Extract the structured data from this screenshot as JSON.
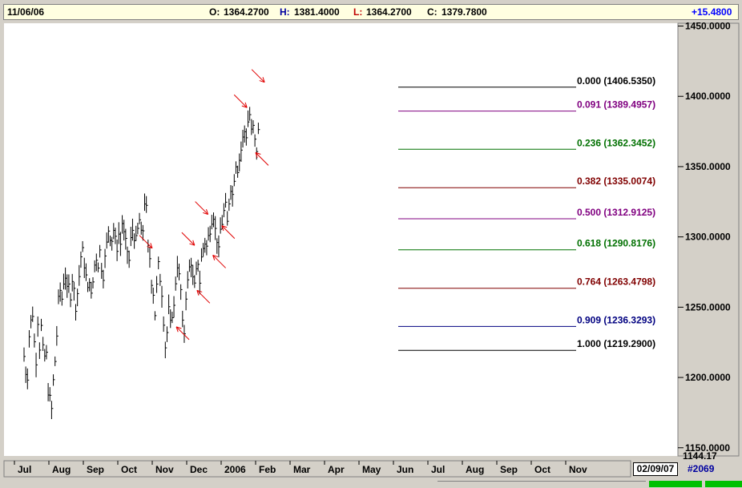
{
  "header": {
    "date": "11/06/06",
    "open_label": "O:",
    "open": "1364.2700",
    "high_label": "H:",
    "high": "1381.4000",
    "low_label": "L:",
    "low": "1364.2700",
    "close_label": "C:",
    "close": "1379.7800",
    "change": "+15.4800"
  },
  "footer": {
    "date": "02/09/07",
    "bar_count": "#2069"
  },
  "colors": {
    "price": "#000000",
    "arrows": "#e00000",
    "plot_bg": "#ffffff",
    "panel_bg": "#d4d0c8"
  },
  "chart_data": {
    "type": "ohlc",
    "y_axis": {
      "range": [
        1144.17,
        1452
      ],
      "ticks": [
        "1450.0000",
        "1400.0000",
        "1350.0000",
        "1300.0000",
        "1250.0000",
        "1200.0000",
        "1150.0000"
      ],
      "tick_values": [
        1450,
        1400,
        1350,
        1300,
        1250,
        1200,
        1150
      ],
      "bottom_label": "1144.17",
      "position": "right"
    },
    "x_axis": {
      "labels": [
        "Jul",
        "Aug",
        "Sep",
        "Oct",
        "Nov",
        "Dec",
        "2006",
        "Feb",
        "Mar",
        "Apr",
        "May",
        "Jun",
        "Jul",
        "Aug",
        "Sep",
        "Oct",
        "Nov"
      ]
    },
    "grid": false,
    "series_path": [
      [
        0,
        1215
      ],
      [
        0.03,
        1195
      ],
      [
        0.06,
        1208
      ],
      [
        0.09,
        1190
      ],
      [
        0.12,
        1222
      ],
      [
        0.16,
        1232
      ],
      [
        0.2,
        1240
      ],
      [
        0.22,
        1232
      ],
      [
        0.25,
        1245
      ],
      [
        0.28,
        1232
      ],
      [
        0.32,
        1218
      ],
      [
        0.34,
        1205
      ],
      [
        0.37,
        1225
      ],
      [
        0.4,
        1240
      ],
      [
        0.43,
        1228
      ],
      [
        0.46,
        1218
      ],
      [
        0.5,
        1236
      ],
      [
        0.54,
        1228
      ],
      [
        0.57,
        1205
      ],
      [
        0.6,
        1215
      ],
      [
        0.63,
        1225
      ],
      [
        0.66,
        1212
      ],
      [
        0.7,
        1190
      ],
      [
        0.72,
        1205
      ],
      [
        0.75,
        1185
      ],
      [
        0.78,
        1172
      ],
      [
        0.81,
        1180
      ],
      [
        0.84,
        1195
      ],
      [
        0.88,
        1205
      ],
      [
        0.91,
        1215
      ],
      [
        0.95,
        1230
      ],
      [
        1.0,
        1255
      ],
      [
        1.05,
        1262
      ],
      [
        1.1,
        1256
      ],
      [
        1.15,
        1268
      ],
      [
        1.2,
        1272
      ],
      [
        1.25,
        1262
      ],
      [
        1.3,
        1265
      ],
      [
        1.35,
        1258
      ],
      [
        1.4,
        1270
      ],
      [
        1.45,
        1262
      ],
      [
        1.5,
        1250
      ],
      [
        1.55,
        1260
      ],
      [
        1.6,
        1272
      ],
      [
        1.65,
        1286
      ],
      [
        1.7,
        1290
      ],
      [
        1.75,
        1280
      ],
      [
        1.8,
        1272
      ],
      [
        1.85,
        1262
      ],
      [
        1.9,
        1270
      ],
      [
        1.95,
        1258
      ],
      [
        2.0,
        1268
      ],
      [
        2.05,
        1280
      ],
      [
        2.1,
        1285
      ],
      [
        2.15,
        1280
      ],
      [
        2.2,
        1290
      ],
      [
        2.25,
        1278
      ],
      [
        2.3,
        1272
      ],
      [
        2.35,
        1285
      ],
      [
        2.4,
        1295
      ],
      [
        2.45,
        1305
      ],
      [
        2.5,
        1300
      ],
      [
        2.55,
        1298
      ],
      [
        2.6,
        1305
      ],
      [
        2.65,
        1298
      ],
      [
        2.7,
        1292
      ],
      [
        2.75,
        1302
      ],
      [
        2.8,
        1295
      ],
      [
        2.85,
        1310
      ],
      [
        2.9,
        1302
      ],
      [
        2.95,
        1296
      ],
      [
        3.0,
        1290
      ],
      [
        3.05,
        1283
      ],
      [
        3.1,
        1298
      ],
      [
        3.15,
        1305
      ],
      [
        3.2,
        1300
      ],
      [
        3.25,
        1298
      ],
      [
        3.3,
        1305
      ],
      [
        3.35,
        1312
      ],
      [
        3.4,
        1302
      ],
      [
        3.45,
        1305
      ],
      [
        3.5,
        1325
      ],
      [
        3.55,
        1320
      ],
      [
        3.6,
        1292
      ],
      [
        3.65,
        1285
      ],
      [
        3.7,
        1268
      ],
      [
        3.75,
        1260
      ],
      [
        3.8,
        1245
      ],
      [
        3.85,
        1265
      ],
      [
        3.9,
        1280
      ],
      [
        3.95,
        1270
      ],
      [
        4.0,
        1260
      ],
      [
        4.05,
        1240
      ],
      [
        4.1,
        1222
      ],
      [
        4.15,
        1232
      ],
      [
        4.2,
        1248
      ],
      [
        4.25,
        1238
      ],
      [
        4.3,
        1245
      ],
      [
        4.35,
        1250
      ],
      [
        4.4,
        1268
      ],
      [
        4.45,
        1280
      ],
      [
        4.5,
        1272
      ],
      [
        4.55,
        1262
      ],
      [
        4.6,
        1238
      ],
      [
        4.65,
        1232
      ],
      [
        4.7,
        1258
      ],
      [
        4.75,
        1268
      ],
      [
        4.8,
        1278
      ],
      [
        4.85,
        1282
      ],
      [
        4.9,
        1270
      ],
      [
        4.95,
        1265
      ],
      [
        5.0,
        1275
      ],
      [
        5.05,
        1282
      ],
      [
        5.1,
        1268
      ],
      [
        5.15,
        1285
      ],
      [
        5.2,
        1292
      ],
      [
        5.25,
        1296
      ],
      [
        5.3,
        1293
      ],
      [
        5.35,
        1300
      ],
      [
        5.4,
        1305
      ],
      [
        5.45,
        1312
      ],
      [
        5.5,
        1315
      ],
      [
        5.55,
        1305
      ],
      [
        5.6,
        1298
      ],
      [
        5.65,
        1290
      ],
      [
        5.7,
        1305
      ],
      [
        5.75,
        1310
      ],
      [
        5.8,
        1318
      ],
      [
        5.85,
        1322
      ],
      [
        5.9,
        1310
      ],
      [
        5.95,
        1325
      ],
      [
        6.0,
        1335
      ],
      [
        6.05,
        1330
      ],
      [
        6.1,
        1342
      ],
      [
        6.15,
        1352
      ],
      [
        6.2,
        1348
      ],
      [
        6.25,
        1355
      ],
      [
        6.3,
        1362
      ],
      [
        6.35,
        1370
      ],
      [
        6.4,
        1375
      ],
      [
        6.45,
        1372
      ],
      [
        6.5,
        1382
      ],
      [
        6.55,
        1387
      ],
      [
        6.6,
        1375
      ],
      [
        6.65,
        1378
      ],
      [
        6.7,
        1368
      ],
      [
        6.75,
        1362
      ],
      [
        6.8,
        1375
      ]
    ],
    "fibonacci": [
      {
        "ratio": "0.000",
        "value": "1406.5350",
        "level": 1406.535,
        "color": "#000000"
      },
      {
        "ratio": "0.091",
        "value": "1389.4957",
        "level": 1389.4957,
        "color": "#800080"
      },
      {
        "ratio": "0.236",
        "value": "1362.3452",
        "level": 1362.3452,
        "color": "#007000"
      },
      {
        "ratio": "0.382",
        "value": "1335.0074",
        "level": 1335.0074,
        "color": "#800000"
      },
      {
        "ratio": "0.500",
        "value": "1312.9125",
        "level": 1312.9125,
        "color": "#800080"
      },
      {
        "ratio": "0.618",
        "value": "1290.8176",
        "level": 1290.8176,
        "color": "#007000"
      },
      {
        "ratio": "0.764",
        "value": "1263.4798",
        "level": 1263.4798,
        "color": "#800000"
      },
      {
        "ratio": "0.909",
        "value": "1236.3293",
        "level": 1236.3293,
        "color": "#000080"
      },
      {
        "ratio": "1.000",
        "value": "1219.2900",
        "level": 1219.29,
        "color": "#000000"
      }
    ],
    "arrows": [
      {
        "month": 6.98,
        "level": 1410,
        "dir": "down"
      },
      {
        "month": 6.47,
        "level": 1392,
        "dir": "down"
      },
      {
        "month": 6.72,
        "level": 1360,
        "dir": "up"
      },
      {
        "month": 5.34,
        "level": 1316,
        "dir": "down"
      },
      {
        "month": 5.74,
        "level": 1308,
        "dir": "up"
      },
      {
        "month": 4.95,
        "level": 1294,
        "dir": "down"
      },
      {
        "month": 5.48,
        "level": 1287,
        "dir": "up"
      },
      {
        "month": 5.02,
        "level": 1262,
        "dir": "up"
      },
      {
        "month": 3.72,
        "level": 1292,
        "dir": "down"
      },
      {
        "month": 4.42,
        "level": 1236,
        "dir": "up"
      }
    ]
  }
}
